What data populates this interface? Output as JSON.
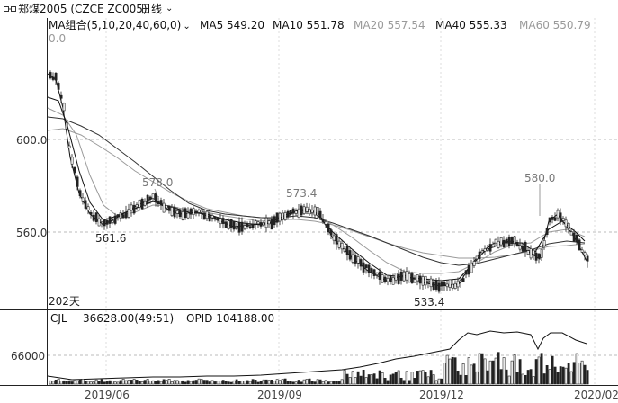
{
  "header": {
    "symbol": "郑煤2005 (CZCE ZC005)",
    "period": "日线"
  },
  "ma_bar": {
    "group_label": "MA组合(5,10,20,40,60,0)",
    "items": [
      {
        "label": "MA5 549.20",
        "color": "#111111"
      },
      {
        "label": "MA10 551.78",
        "color": "#111111"
      },
      {
        "label": "MA20 557.54",
        "color": "#9a9a9a"
      },
      {
        "label": "MA40 555.33",
        "color": "#111111"
      },
      {
        "label": "MA60 550.79",
        "color": "#9a9a9a"
      }
    ]
  },
  "price_chart": {
    "y_ticks": [
      "600.0",
      "560.0"
    ],
    "top_label": "0.0",
    "annotations": [
      "578.0",
      "561.6",
      "573.4",
      "533.4",
      "580.0"
    ],
    "bar_count_label": "202天"
  },
  "volume_panel": {
    "label": "CJL",
    "value": "36628.00(49:51)",
    "opid": "OPID 104188.00",
    "y_tick": "66000"
  },
  "x_axis": {
    "ticks": [
      "2019/06",
      "2019/09",
      "2019/12",
      "2020/02"
    ]
  },
  "chart_data": {
    "type": "candlestick",
    "y_ticks_price": [
      600,
      560
    ],
    "y_tick_volume": 66000,
    "annotated_extremes": [
      578.0,
      561.6,
      573.4,
      533.4,
      580.0
    ],
    "moving_averages": [
      {
        "name": "MA5",
        "value": 549.2
      },
      {
        "name": "MA10",
        "value": 551.78
      },
      {
        "name": "MA20",
        "value": 557.54
      },
      {
        "name": "MA40",
        "value": 555.33
      },
      {
        "name": "MA60",
        "value": 550.79
      }
    ]
  }
}
